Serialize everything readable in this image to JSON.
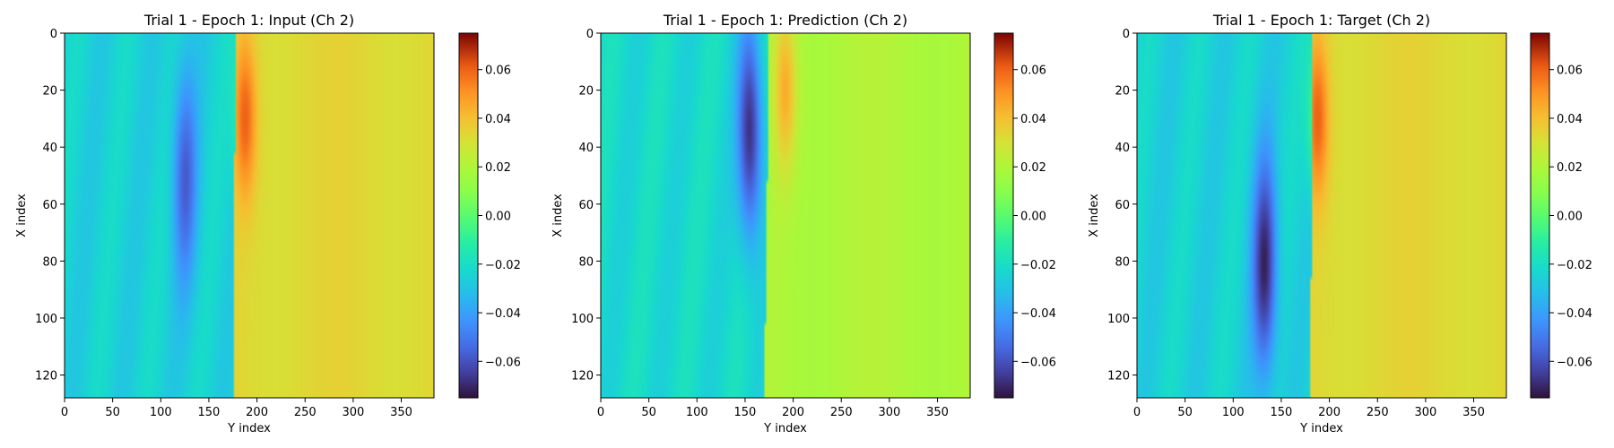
{
  "chart_data": [
    {
      "type": "heatmap",
      "title": "Trial 1 - Epoch 1: Input (Ch 2)",
      "xlabel": "Y index",
      "ylabel": "X index",
      "xlim": [
        0,
        384
      ],
      "ylim": [
        128,
        0
      ],
      "xticks": [
        0,
        50,
        100,
        150,
        200,
        250,
        300,
        350
      ],
      "yticks": [
        0,
        20,
        40,
        60,
        80,
        100,
        120
      ],
      "colorbar": {
        "colormap": "turbo",
        "vmin": -0.075,
        "vmax": 0.075,
        "ticks": [
          -0.06,
          -0.04,
          -0.02,
          0.0,
          0.02,
          0.04,
          0.06
        ],
        "tick_labels": [
          "−0.06",
          "−0.04",
          "−0.02",
          "0.00",
          "0.02",
          "0.04",
          "0.06"
        ]
      },
      "field": {
        "left_value": -0.025,
        "right_value": 0.033,
        "front_x_top": 178,
        "front_x_bottom": 175,
        "min_value": -0.055,
        "min_at": [
          50,
          125
        ],
        "max_value": 0.06,
        "max_at": [
          30,
          188
        ]
      }
    },
    {
      "type": "heatmap",
      "title": "Trial 1 - Epoch 1: Prediction (Ch 2)",
      "xlabel": "Y index",
      "ylabel": "X index",
      "xlim": [
        0,
        384
      ],
      "ylim": [
        128,
        0
      ],
      "xticks": [
        0,
        50,
        100,
        150,
        200,
        250,
        300,
        350
      ],
      "yticks": [
        0,
        20,
        40,
        60,
        80,
        100,
        120
      ],
      "colorbar": {
        "colormap": "turbo",
        "vmin": -0.075,
        "vmax": 0.075,
        "ticks": [
          -0.06,
          -0.04,
          -0.02,
          0.0,
          0.02,
          0.04,
          0.06
        ],
        "tick_labels": [
          "−0.06",
          "−0.04",
          "−0.02",
          "0.00",
          "0.02",
          "0.04",
          "0.06"
        ]
      },
      "field": {
        "left_value": -0.022,
        "right_value": 0.02,
        "front_x_top": 175,
        "front_x_bottom": 170,
        "min_value": -0.07,
        "min_at": [
          35,
          155
        ],
        "max_value": 0.045,
        "max_at": [
          20,
          192
        ]
      }
    },
    {
      "type": "heatmap",
      "title": "Trial 1 - Epoch 1: Target (Ch 2)",
      "xlabel": "Y index",
      "ylabel": "X index",
      "xlim": [
        0,
        384
      ],
      "ylim": [
        128,
        0
      ],
      "xticks": [
        0,
        50,
        100,
        150,
        200,
        250,
        300,
        350
      ],
      "yticks": [
        0,
        20,
        40,
        60,
        80,
        100,
        120
      ],
      "colorbar": {
        "colormap": "turbo",
        "vmin": -0.075,
        "vmax": 0.075,
        "ticks": [
          -0.06,
          -0.04,
          -0.02,
          0.0,
          0.02,
          0.04,
          0.06
        ],
        "tick_labels": [
          "−0.06",
          "−0.04",
          "−0.02",
          "0.00",
          "0.02",
          "0.04",
          "0.06"
        ]
      },
      "field": {
        "left_value": -0.025,
        "right_value": 0.033,
        "front_x_top": 183,
        "front_x_bottom": 180,
        "min_value": -0.07,
        "min_at": [
          82,
          133
        ],
        "max_value": 0.06,
        "max_at": [
          30,
          188
        ]
      }
    }
  ]
}
